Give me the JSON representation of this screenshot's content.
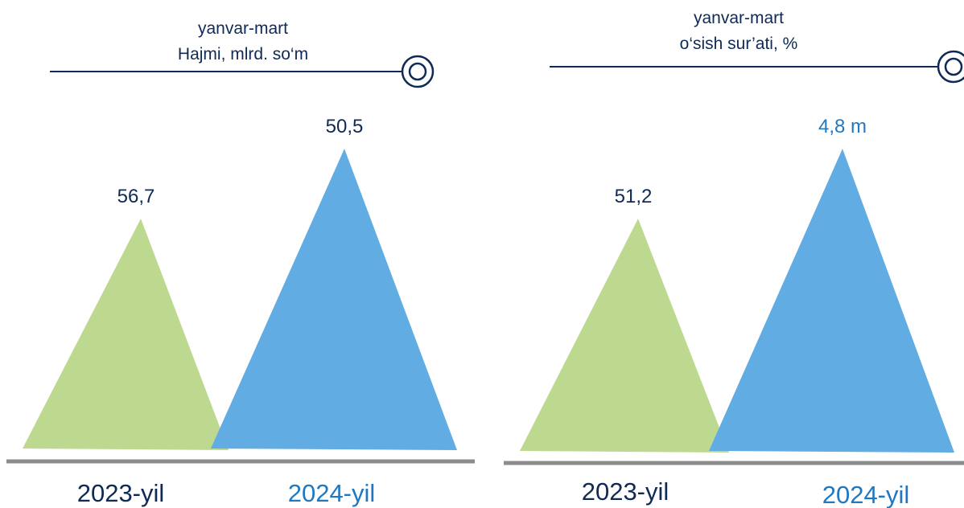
{
  "colors": {
    "green": "#bcd98f",
    "blue": "#60ace3",
    "navy": "#0f2a55",
    "blue_text": "#1f78c0",
    "baseline": "#8c8c8c"
  },
  "chart_data": [
    {
      "type": "bar",
      "mark_shape": "triangle",
      "title_line1": "yanvar-mart",
      "title_line2": "Hajmi, mlrd. so‘m",
      "categories": [
        "2023-yil",
        "2024-yil"
      ],
      "values": [
        56.7,
        50.5
      ],
      "value_labels": [
        "56,7",
        "50,5"
      ],
      "category_colors": [
        "navy",
        "blue_text"
      ],
      "value_label_colors": [
        "navy",
        "navy"
      ]
    },
    {
      "type": "bar",
      "mark_shape": "triangle",
      "title_line1": "yanvar-mart",
      "title_line2": "o‘sish sur’ati, %",
      "categories": [
        "2023-yil",
        "2024-yil"
      ],
      "values": [
        51.2,
        4.8
      ],
      "value_labels": [
        "51,2",
        "4,8 m"
      ],
      "category_colors": [
        "navy",
        "blue_text"
      ],
      "value_label_colors": [
        "navy",
        "blue_text"
      ]
    }
  ]
}
